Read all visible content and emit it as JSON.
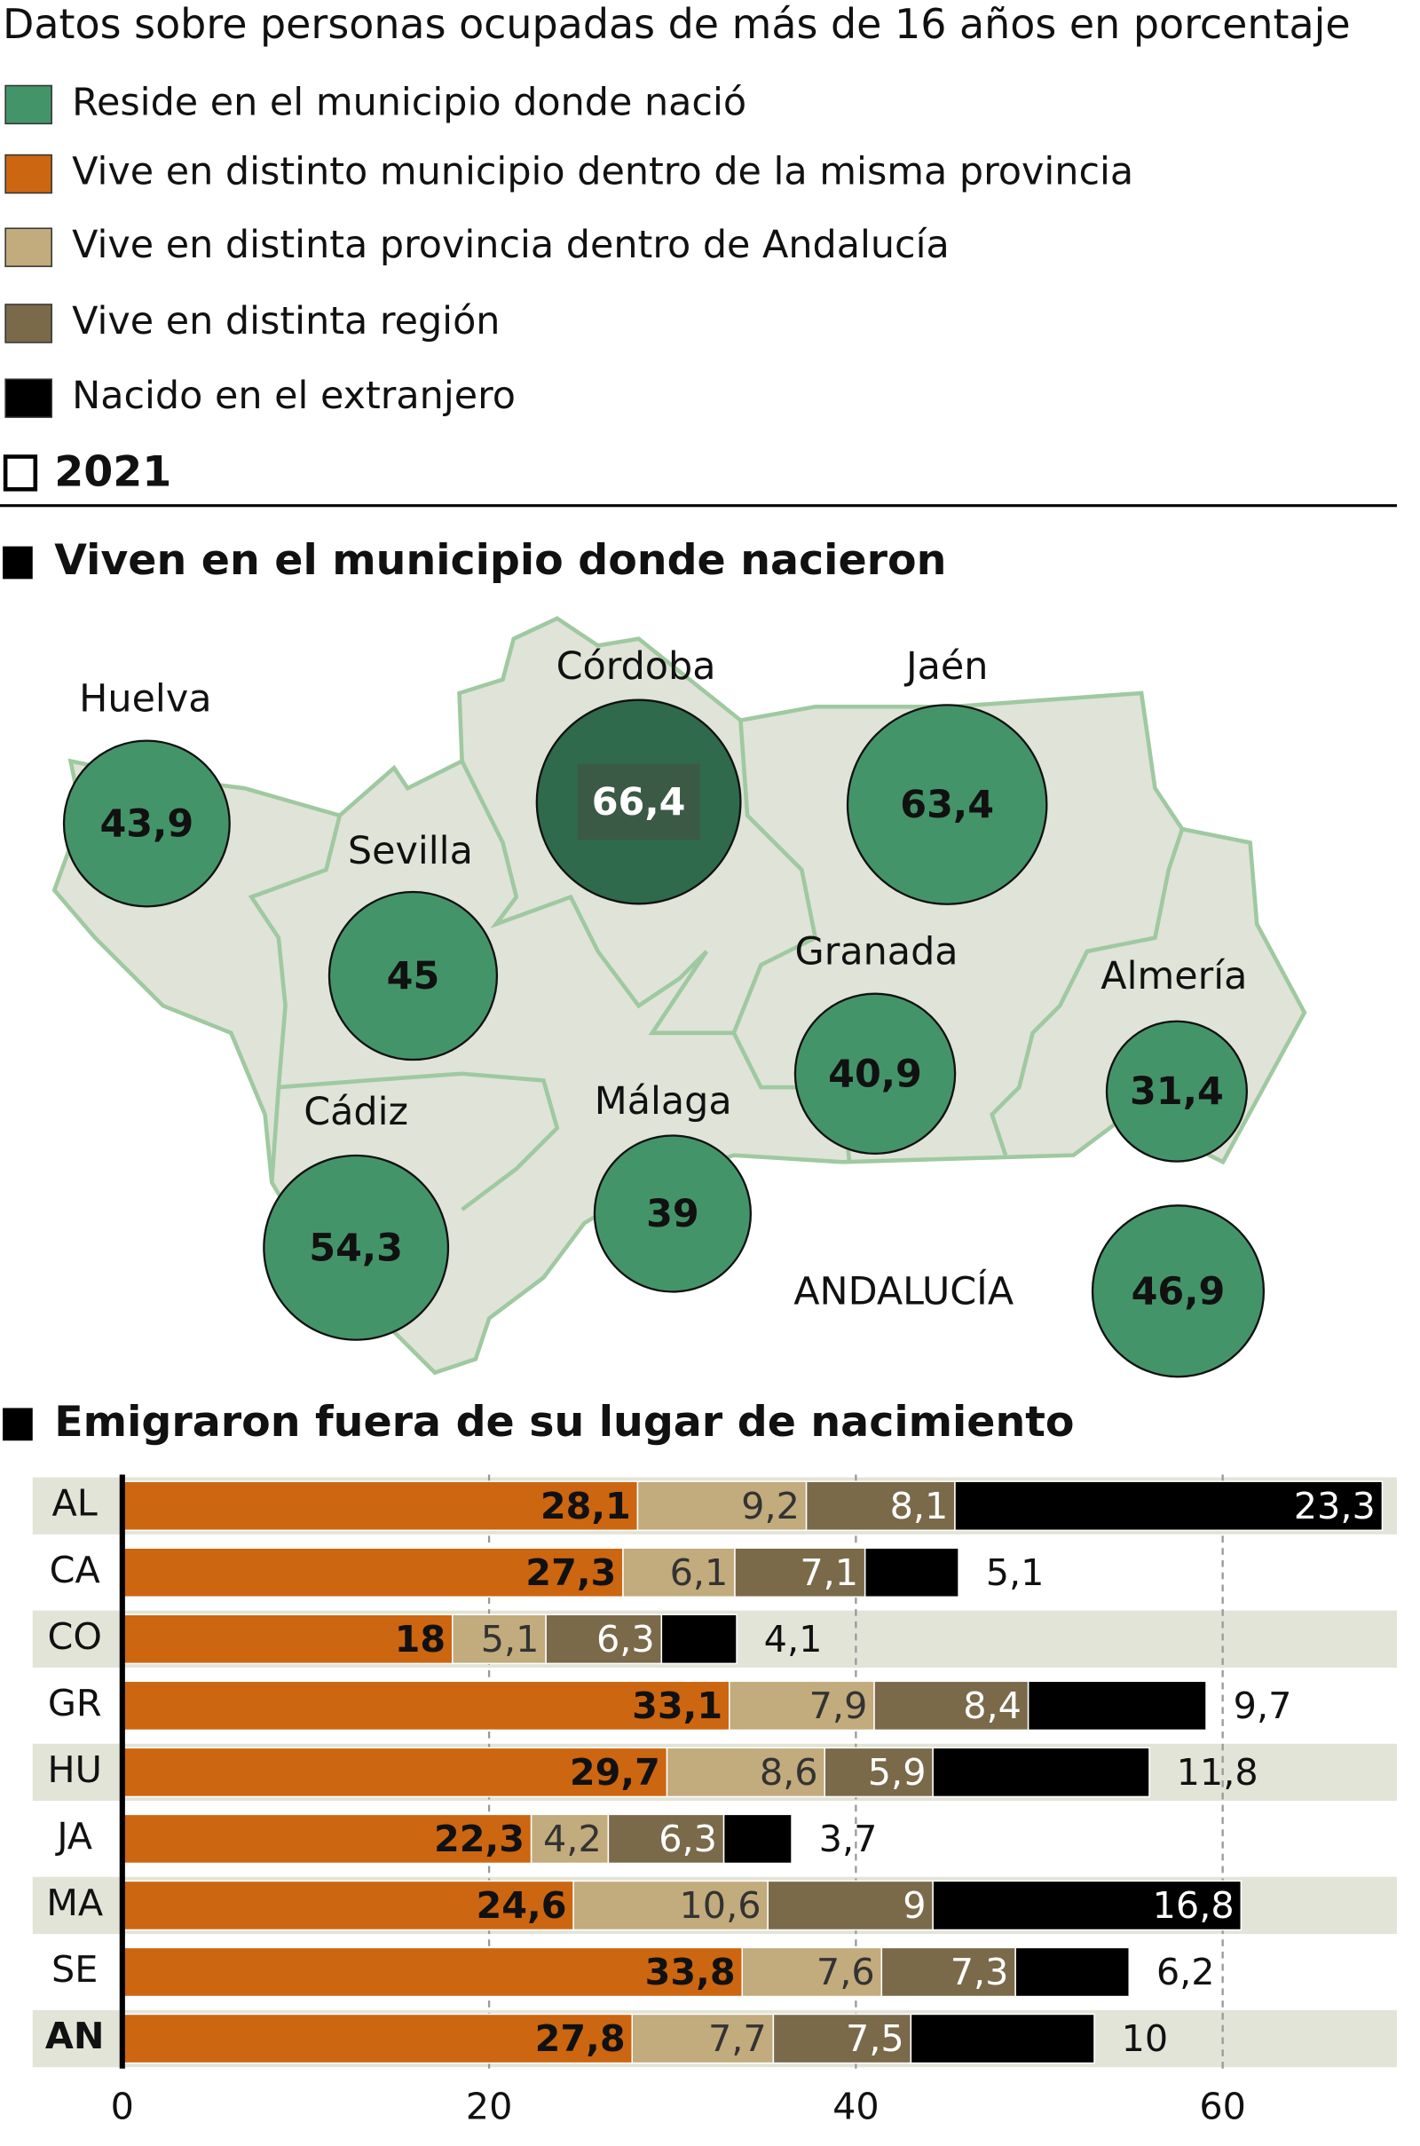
{
  "header": {
    "title": "Datos sobre personas ocupadas de más de 16 años en porcentaje",
    "year": "2021"
  },
  "chart_data": [
    {
      "type": "bubble-map",
      "title": "Viven en el municipio donde nacieron",
      "categories": [
        "Huelva",
        "Sevilla",
        "Córdoba",
        "Jaén",
        "Cádiz",
        "Málaga",
        "Granada",
        "Almería",
        "ANDALUCÍA"
      ],
      "series": [
        {
          "name": "Reside en el municipio donde nació",
          "color": "#44946a",
          "values": [
            43.9,
            45,
            66.4,
            63.4,
            54.3,
            39,
            40.9,
            31.4,
            46.9
          ],
          "value_labels": [
            "43,9",
            "45",
            "66,4",
            "63,4",
            "54,3",
            "39",
            "40,9",
            "31,4",
            "46,9"
          ]
        }
      ],
      "highlight": {
        "category": "Córdoba",
        "color": "#2e6a4b"
      }
    },
    {
      "type": "stacked-bar-h",
      "title": "Emigraron fuera de su lugar de nacimiento",
      "categories": [
        "AL",
        "CA",
        "CO",
        "GR",
        "HU",
        "JA",
        "MA",
        "SE",
        "AN"
      ],
      "series": [
        {
          "name": "Vive en distinto municipio dentro de la misma provincia",
          "color": "#cc6611",
          "values": [
            28.1,
            27.3,
            18,
            33.1,
            29.7,
            22.3,
            24.6,
            33.8,
            27.8
          ],
          "value_labels": [
            "28,1",
            "27,3",
            "18",
            "33,1",
            "29,7",
            "22,3",
            "24,6",
            "33,8",
            "27,8"
          ]
        },
        {
          "name": "Vive en distinta provincia dentro de Andalucía",
          "color": "#c2ab7c",
          "values": [
            9.2,
            6.1,
            5.1,
            7.9,
            8.6,
            4.2,
            10.6,
            7.6,
            7.7
          ],
          "value_labels": [
            "9,2",
            "6,1",
            "5,1",
            "7,9",
            "8,6",
            "4,2",
            "10,6",
            "7,6",
            "7,7"
          ]
        },
        {
          "name": "Vive en distinta región",
          "color": "#7a6a4a",
          "values": [
            8.1,
            7.1,
            6.3,
            8.4,
            5.9,
            6.3,
            9,
            7.3,
            7.5
          ],
          "value_labels": [
            "8,1",
            "7,1",
            "6,3",
            "8,4",
            "5,9",
            "6,3",
            "9",
            "7,3",
            "7,5"
          ]
        },
        {
          "name": "Nacido en el extranjero",
          "color": "#000000",
          "values": [
            23.3,
            5.1,
            4.1,
            9.7,
            11.8,
            3.7,
            16.8,
            6.2,
            10
          ],
          "value_labels": [
            "23,3",
            "5,1",
            "4,1",
            "9,7",
            "11,8",
            "3,7",
            "16,8",
            "6,2",
            "10"
          ]
        }
      ],
      "xlim": [
        0,
        69.5
      ],
      "xticks": [
        0,
        20,
        40,
        60
      ],
      "grid": true
    }
  ]
}
